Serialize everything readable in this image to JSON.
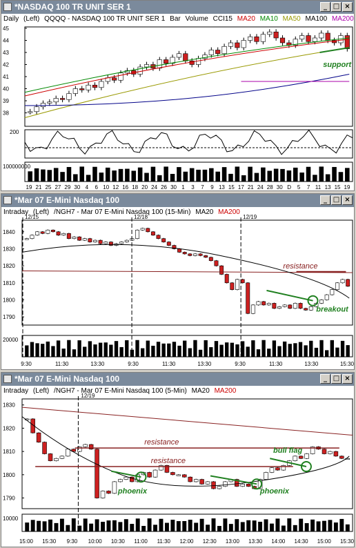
{
  "colors": {
    "up": "#ffffff",
    "down": "#cc2020",
    "ma20": "#cc0000",
    "ma10": "#008800",
    "ma50": "#999900",
    "ma100": "#000088",
    "ma200": "#aa00aa",
    "annot": "#208020",
    "resistance": "#882020"
  },
  "windows": [
    {
      "title": "*NASDAQ 100 TR UNIT SER 1",
      "header": [
        "Daily",
        "(Left)",
        "QQQQ - NASDAQ 100 TR UNIT SER 1",
        "Bar",
        "Volume",
        "CCI15",
        "MA20",
        "MA10",
        "MA50",
        "MA100",
        "MA200"
      ],
      "buttons": [
        "_",
        "□",
        "×"
      ]
    },
    {
      "title": "*Mar 07  E-Mini Nasdaq 100",
      "header": [
        "Intraday",
        "(Left)",
        "/NGH7 - Mar 07 E-Mini Nasdaq 100 (15-Min)",
        "MA20",
        "MA200"
      ],
      "buttons": [
        "_",
        "□",
        "×"
      ]
    },
    {
      "title": "*Mar 07  E-Mini Nasdaq 100",
      "header": [
        "Intraday",
        "(Left)",
        "/NGH7 - Mar 07 E-Mini Nasdaq 100 (5-Min)",
        "MA20",
        "MA200"
      ],
      "buttons": [
        "_",
        "□",
        "×"
      ]
    }
  ],
  "chart_data": [
    {
      "type": "candlestick",
      "interval": "daily",
      "ylim": [
        37,
        45
      ],
      "yticks": [
        38,
        39,
        40,
        41,
        42,
        43,
        44,
        45
      ],
      "xticks": [
        "19",
        "21",
        "25",
        "27",
        "29",
        "30",
        "4",
        "6",
        "10",
        "12",
        "16",
        "18",
        "20",
        "24",
        "26",
        "30",
        "1",
        "3",
        "7",
        "9",
        "13",
        "15",
        "17",
        "21",
        "24",
        "28",
        "30",
        "D",
        "5",
        "7",
        "11",
        "13",
        "15",
        "19"
      ],
      "closes": [
        38.1,
        38.5,
        38.8,
        38.9,
        39.2,
        39.1,
        39.6,
        40.0,
        39.9,
        40.3,
        40.1,
        40.6,
        40.9,
        40.7,
        41.3,
        41.5,
        41.2,
        41.8,
        42.0,
        41.7,
        42.4,
        42.1,
        42.6,
        42.9,
        42.3,
        42.0,
        42.5,
        42.8,
        43.2,
        42.9,
        43.5,
        43.8,
        43.4,
        44.0,
        44.3,
        43.9,
        44.5,
        44.7,
        44.2,
        43.8,
        43.6,
        44.1,
        44.4,
        43.9,
        44.2,
        44.6,
        44.0,
        43.8,
        44.4,
        43.3
      ],
      "ma_lines": [
        {
          "name": "MA20",
          "from": 39.4,
          "to": 44.1
        },
        {
          "name": "MA10",
          "from": 39.7,
          "to": 44.2
        },
        {
          "name": "MA50",
          "from": 37.6,
          "to": 43.4
        },
        {
          "name": "MA100",
          "from": 38.6,
          "to": 41.2
        },
        {
          "name": "MA200",
          "from": 40.6,
          "to": 40.6
        }
      ],
      "annotations": [
        "support"
      ],
      "cci": {
        "ylim": [
          -200,
          200
        ],
        "yticks": [
          200
        ]
      },
      "volume": {
        "ylabel": "100000000"
      }
    },
    {
      "type": "candlestick",
      "interval": "15-Min",
      "ylim": [
        1786,
        1846
      ],
      "yticks": [
        1790,
        1800,
        1810,
        1820,
        1830,
        1840
      ],
      "xticks": [
        "9:30",
        "11:30",
        "13:30",
        "9:30",
        "11:30",
        "13:30",
        "9:30",
        "11:30",
        "13:30",
        "15:30"
      ],
      "date_markers": [
        "12/15",
        "12/18",
        "12/19"
      ],
      "closes": [
        1836,
        1838,
        1840,
        1839,
        1841,
        1840,
        1838,
        1839,
        1836,
        1837,
        1835,
        1836,
        1834,
        1835,
        1833,
        1834,
        1832,
        1833,
        1834,
        1835,
        1836,
        1841,
        1842,
        1840,
        1838,
        1836,
        1834,
        1832,
        1830,
        1828,
        1827,
        1826,
        1827,
        1826,
        1825,
        1823,
        1820,
        1815,
        1810,
        1806,
        1812,
        1810,
        1792,
        1797,
        1799,
        1797,
        1798,
        1795,
        1796,
        1797,
        1795,
        1798,
        1795,
        1794,
        1796,
        1798,
        1800,
        1803,
        1806,
        1810,
        1812,
        1808
      ],
      "ma20": {
        "from": 1832,
        "to": 1801
      },
      "ma200": {
        "from": 1817,
        "to": 1816
      },
      "annotations": [
        "resistance",
        "breakout"
      ],
      "volume": {
        "ylabel": "20000"
      }
    },
    {
      "type": "candlestick",
      "interval": "5-Min",
      "ylim": [
        1786,
        1832
      ],
      "yticks": [
        1790,
        1800,
        1810,
        1820,
        1830
      ],
      "xticks": [
        "15:00",
        "15:30",
        "9:30",
        "10:00",
        "10:30",
        "11:00",
        "11:30",
        "12:00",
        "12:30",
        "13:00",
        "13:30",
        "14:00",
        "14:30",
        "15:00",
        "15:30"
      ],
      "date_markers": [
        "12/19"
      ],
      "closes": [
        1824,
        1818,
        1814,
        1809,
        1806,
        1807,
        1808,
        1811,
        1810,
        1812,
        1813,
        1811,
        1790,
        1793,
        1792,
        1797,
        1798,
        1799,
        1797,
        1800,
        1801,
        1799,
        1802,
        1804,
        1801,
        1800,
        1800,
        1799,
        1797,
        1798,
        1796,
        1797,
        1794,
        1795,
        1797,
        1798,
        1795,
        1796,
        1795,
        1794,
        1798,
        1801,
        1803,
        1802,
        1804,
        1806,
        1808,
        1807,
        1809,
        1812,
        1811,
        1809,
        1810,
        1808,
        1807,
        1807
      ],
      "ma20": {
        "from": 1825,
        "to": 1808
      },
      "ma200": {
        "from": 1829,
        "to": 1817
      },
      "annotations": [
        "resistance",
        "resistance",
        "bull flag",
        "phoenix",
        "phoenix"
      ],
      "volume": {
        "ylabel": "10000"
      }
    }
  ]
}
